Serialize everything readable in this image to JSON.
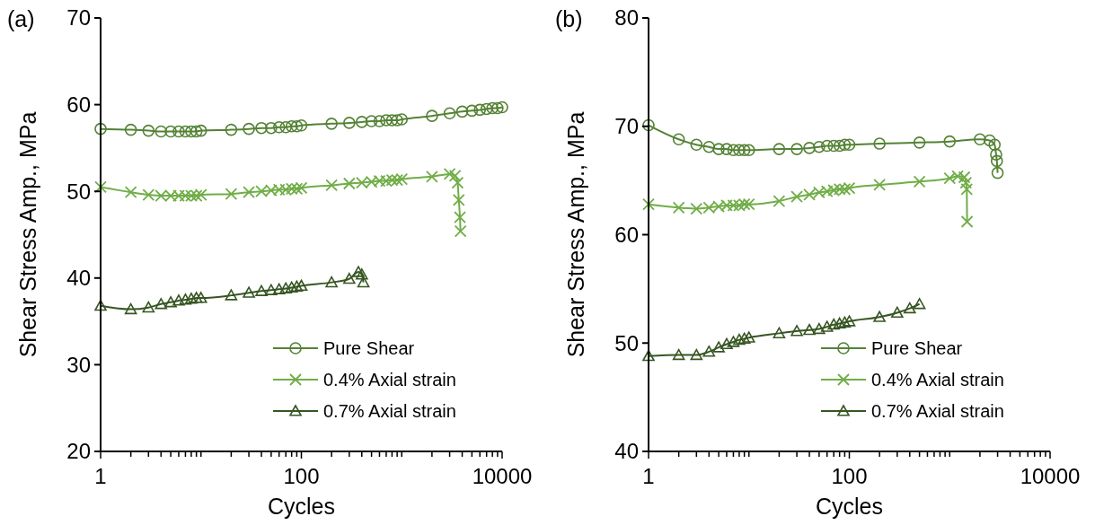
{
  "chart_data": [
    {
      "type": "line",
      "title": "(a)",
      "xlabel": "Cycles",
      "ylabel": "Shear Stress Amp., MPa",
      "log": "x",
      "xlim": [
        1,
        10000
      ],
      "ylim": [
        20,
        70
      ],
      "yticks": [
        20,
        30,
        40,
        50,
        60,
        70
      ],
      "xticks": [
        1,
        {
          "value": 2,
          "label": null
        },
        {
          "value": 3,
          "label": null
        },
        {
          "value": 4,
          "label": null
        },
        {
          "value": 5,
          "label": null
        },
        {
          "value": 6,
          "label": null
        },
        {
          "value": 7,
          "label": null
        },
        {
          "value": 8,
          "label": null
        },
        {
          "value": 9,
          "label": null
        },
        {
          "value": 10,
          "label": null
        },
        {
          "value": 20,
          "label": null
        },
        {
          "value": 30,
          "label": null
        },
        {
          "value": 40,
          "label": null
        },
        {
          "value": 50,
          "label": null
        },
        {
          "value": 60,
          "label": null
        },
        {
          "value": 70,
          "label": null
        },
        {
          "value": 80,
          "label": null
        },
        {
          "value": 90,
          "label": null
        },
        100,
        {
          "value": 200,
          "label": null
        },
        {
          "value": 300,
          "label": null
        },
        {
          "value": 400,
          "label": null
        },
        {
          "value": 500,
          "label": null
        },
        {
          "value": 600,
          "label": null
        },
        {
          "value": 700,
          "label": null
        },
        {
          "value": 800,
          "label": null
        },
        {
          "value": 900,
          "label": null
        },
        {
          "value": 1000,
          "label": null
        },
        {
          "value": 2000,
          "label": null
        },
        {
          "value": 3000,
          "label": null
        },
        {
          "value": 4000,
          "label": null
        },
        {
          "value": 5000,
          "label": null
        },
        {
          "value": 6000,
          "label": null
        },
        {
          "value": 7000,
          "label": null
        },
        {
          "value": 8000,
          "label": null
        },
        {
          "value": 9000,
          "label": null
        },
        10000
      ],
      "grid": false,
      "legend": "bottom right",
      "line_style": "solid",
      "series": [
        {
          "name": "Pure Shear",
          "color": "#548235",
          "marker": "circle",
          "x": [
            1,
            2,
            3,
            4,
            5,
            6,
            7,
            8,
            9,
            10,
            20,
            30,
            40,
            50,
            60,
            70,
            80,
            90,
            100,
            200,
            300,
            400,
            500,
            600,
            700,
            800,
            900,
            1000,
            2000,
            3000,
            4000,
            5000,
            6000,
            7000,
            8000,
            9000,
            10000
          ],
          "values": [
            57.2,
            57.1,
            57.0,
            56.9,
            56.9,
            56.9,
            56.9,
            56.9,
            56.9,
            57.0,
            57.1,
            57.2,
            57.3,
            57.3,
            57.4,
            57.4,
            57.5,
            57.5,
            57.6,
            57.8,
            57.9,
            58.0,
            58.1,
            58.1,
            58.2,
            58.2,
            58.2,
            58.3,
            58.7,
            59.0,
            59.2,
            59.3,
            59.4,
            59.5,
            59.6,
            59.6,
            59.7
          ]
        },
        {
          "name": "0.4% Axial strain",
          "color": "#70ad47",
          "marker": "cross",
          "x": [
            1,
            2,
            3,
            4,
            5,
            6,
            7,
            8,
            9,
            10,
            20,
            30,
            40,
            50,
            60,
            70,
            80,
            90,
            100,
            200,
            300,
            400,
            500,
            600,
            700,
            800,
            900,
            1000,
            2000,
            3000,
            3400,
            3600,
            3700,
            3800,
            3850
          ],
          "values": [
            50.5,
            49.9,
            49.6,
            49.5,
            49.5,
            49.5,
            49.5,
            49.5,
            49.5,
            49.6,
            49.7,
            49.9,
            50.0,
            50.1,
            50.2,
            50.2,
            50.3,
            50.3,
            50.4,
            50.7,
            50.9,
            51.0,
            51.1,
            51.2,
            51.2,
            51.3,
            51.3,
            51.4,
            51.7,
            52.0,
            51.8,
            51.0,
            49.0,
            47.0,
            45.4
          ]
        },
        {
          "name": "0.7% Axial strain",
          "color": "#375623",
          "marker": "triangle",
          "x": [
            1,
            2,
            3,
            4,
            5,
            6,
            7,
            8,
            9,
            10,
            20,
            30,
            40,
            50,
            60,
            70,
            80,
            90,
            100,
            200,
            300,
            370,
            400,
            415
          ],
          "values": [
            36.8,
            36.4,
            36.6,
            37.0,
            37.2,
            37.4,
            37.5,
            37.6,
            37.7,
            37.7,
            38.0,
            38.3,
            38.5,
            38.6,
            38.7,
            38.8,
            38.9,
            39.0,
            39.1,
            39.5,
            39.9,
            40.7,
            40.4,
            39.5
          ]
        }
      ]
    },
    {
      "type": "line",
      "title": "(b)",
      "xlabel": "Cycles",
      "ylabel": "Shear Stress Amp., MPa",
      "log": "x",
      "xlim": [
        1,
        10000
      ],
      "ylim": [
        40,
        80
      ],
      "yticks": [
        40,
        50,
        60,
        70,
        80
      ],
      "xticks": [
        1,
        {
          "value": 2,
          "label": null
        },
        {
          "value": 3,
          "label": null
        },
        {
          "value": 4,
          "label": null
        },
        {
          "value": 5,
          "label": null
        },
        {
          "value": 6,
          "label": null
        },
        {
          "value": 7,
          "label": null
        },
        {
          "value": 8,
          "label": null
        },
        {
          "value": 9,
          "label": null
        },
        {
          "value": 10,
          "label": null
        },
        {
          "value": 20,
          "label": null
        },
        {
          "value": 30,
          "label": null
        },
        {
          "value": 40,
          "label": null
        },
        {
          "value": 50,
          "label": null
        },
        {
          "value": 60,
          "label": null
        },
        {
          "value": 70,
          "label": null
        },
        {
          "value": 80,
          "label": null
        },
        {
          "value": 90,
          "label": null
        },
        100,
        {
          "value": 200,
          "label": null
        },
        {
          "value": 300,
          "label": null
        },
        {
          "value": 400,
          "label": null
        },
        {
          "value": 500,
          "label": null
        },
        {
          "value": 600,
          "label": null
        },
        {
          "value": 700,
          "label": null
        },
        {
          "value": 800,
          "label": null
        },
        {
          "value": 900,
          "label": null
        },
        {
          "value": 1000,
          "label": null
        },
        {
          "value": 2000,
          "label": null
        },
        {
          "value": 3000,
          "label": null
        },
        {
          "value": 4000,
          "label": null
        },
        {
          "value": 5000,
          "label": null
        },
        {
          "value": 6000,
          "label": null
        },
        {
          "value": 7000,
          "label": null
        },
        {
          "value": 8000,
          "label": null
        },
        {
          "value": 9000,
          "label": null
        },
        10000
      ],
      "grid": false,
      "legend": "bottom right",
      "line_style": "solid",
      "series": [
        {
          "name": "Pure Shear",
          "color": "#548235",
          "marker": "circle",
          "x": [
            1,
            2,
            3,
            4,
            5,
            6,
            7,
            8,
            9,
            10,
            20,
            30,
            40,
            50,
            60,
            70,
            80,
            90,
            100,
            200,
            500,
            1000,
            2000,
            2500,
            2800,
            2900,
            2950,
            3000
          ],
          "values": [
            70.1,
            68.8,
            68.3,
            68.1,
            67.9,
            67.9,
            67.8,
            67.8,
            67.8,
            67.8,
            67.9,
            67.9,
            68.0,
            68.1,
            68.2,
            68.2,
            68.2,
            68.3,
            68.3,
            68.4,
            68.5,
            68.6,
            68.8,
            68.7,
            68.3,
            67.4,
            66.8,
            65.7
          ]
        },
        {
          "name": "0.4% Axial strain",
          "color": "#70ad47",
          "marker": "cross",
          "x": [
            1,
            2,
            3,
            4,
            5,
            6,
            7,
            8,
            9,
            10,
            20,
            30,
            40,
            50,
            60,
            70,
            80,
            90,
            100,
            200,
            500,
            1000,
            1200,
            1400,
            1450,
            1480,
            1490
          ],
          "values": [
            62.8,
            62.5,
            62.4,
            62.5,
            62.6,
            62.7,
            62.7,
            62.7,
            62.8,
            62.8,
            63.1,
            63.5,
            63.7,
            63.9,
            64.0,
            64.1,
            64.2,
            64.2,
            64.3,
            64.6,
            64.9,
            65.2,
            65.4,
            65.3,
            64.8,
            64.2,
            61.2
          ]
        },
        {
          "name": "0.7% Axial strain",
          "color": "#375623",
          "marker": "triangle",
          "x": [
            1,
            2,
            3,
            4,
            5,
            6,
            7,
            8,
            9,
            10,
            20,
            30,
            40,
            50,
            60,
            70,
            80,
            90,
            100,
            200,
            300,
            400,
            500
          ],
          "values": [
            48.8,
            48.9,
            48.9,
            49.2,
            49.6,
            49.9,
            50.1,
            50.3,
            50.4,
            50.5,
            50.9,
            51.1,
            51.2,
            51.3,
            51.5,
            51.7,
            51.8,
            51.9,
            52.0,
            52.4,
            52.8,
            53.2,
            53.6
          ]
        }
      ]
    }
  ]
}
